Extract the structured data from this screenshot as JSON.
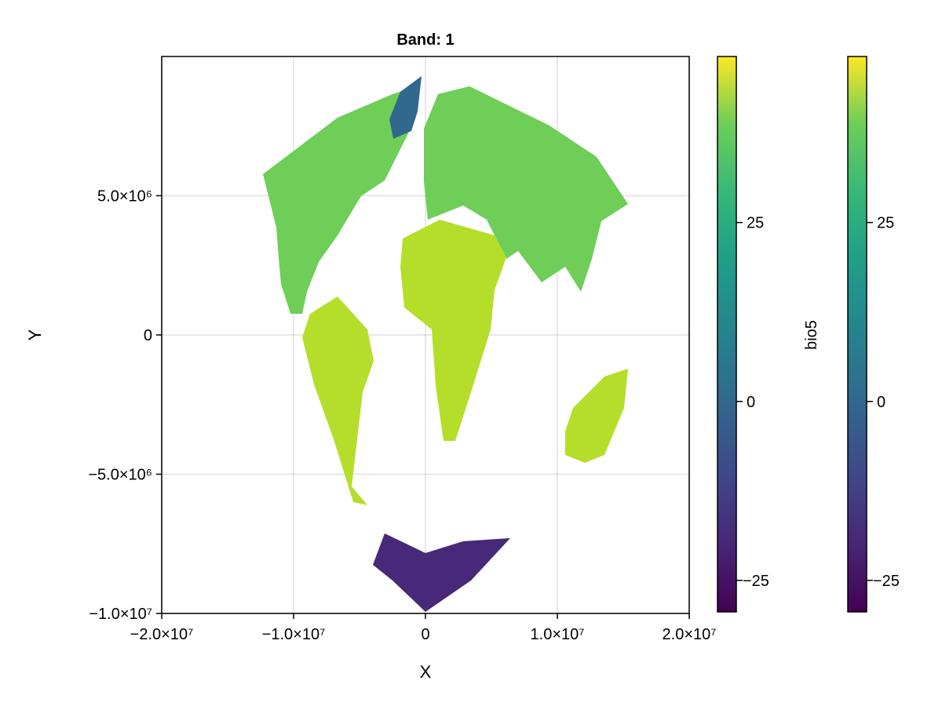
{
  "chart_data": {
    "type": "heatmap",
    "title": "Band: 1",
    "xlabel": "X",
    "ylabel": "Y",
    "xlim": [
      -20000000,
      20000000
    ],
    "ylim": [
      -10000000,
      10000000
    ],
    "xticks": [
      -20000000,
      -10000000,
      0,
      10000000,
      20000000
    ],
    "xtick_labels": [
      "−2.0×10⁷",
      "−1.0×10⁷",
      "0",
      "1.0×10⁷",
      "2.0×10⁷"
    ],
    "yticks": [
      -10000000,
      -5000000,
      0,
      5000000
    ],
    "ytick_labels": [
      "−1.0×10⁷",
      "−5.0×10⁶",
      "0",
      "5.0×10⁶"
    ],
    "grid": true,
    "colormap": "viridis",
    "colorbars": [
      {
        "label": "bio5",
        "range": [
          -29.4,
          48.2
        ],
        "ticks": [
          -25,
          0,
          25
        ],
        "tick_labels": [
          "−25",
          "0",
          "25"
        ]
      },
      {
        "label": "",
        "range": [
          -29.4,
          48.2
        ],
        "ticks": [
          -25,
          0,
          25
        ],
        "tick_labels": [
          "−25",
          "0",
          "25"
        ]
      }
    ],
    "regions": [
      {
        "name": "North America",
        "value": 27
      },
      {
        "name": "Greenland",
        "value": -5
      },
      {
        "name": "South America",
        "value": 36
      },
      {
        "name": "Eurasia",
        "value": 28
      },
      {
        "name": "Africa",
        "value": 40
      },
      {
        "name": "Australia",
        "value": 40
      },
      {
        "name": "Antarctica",
        "value": -22
      }
    ]
  }
}
